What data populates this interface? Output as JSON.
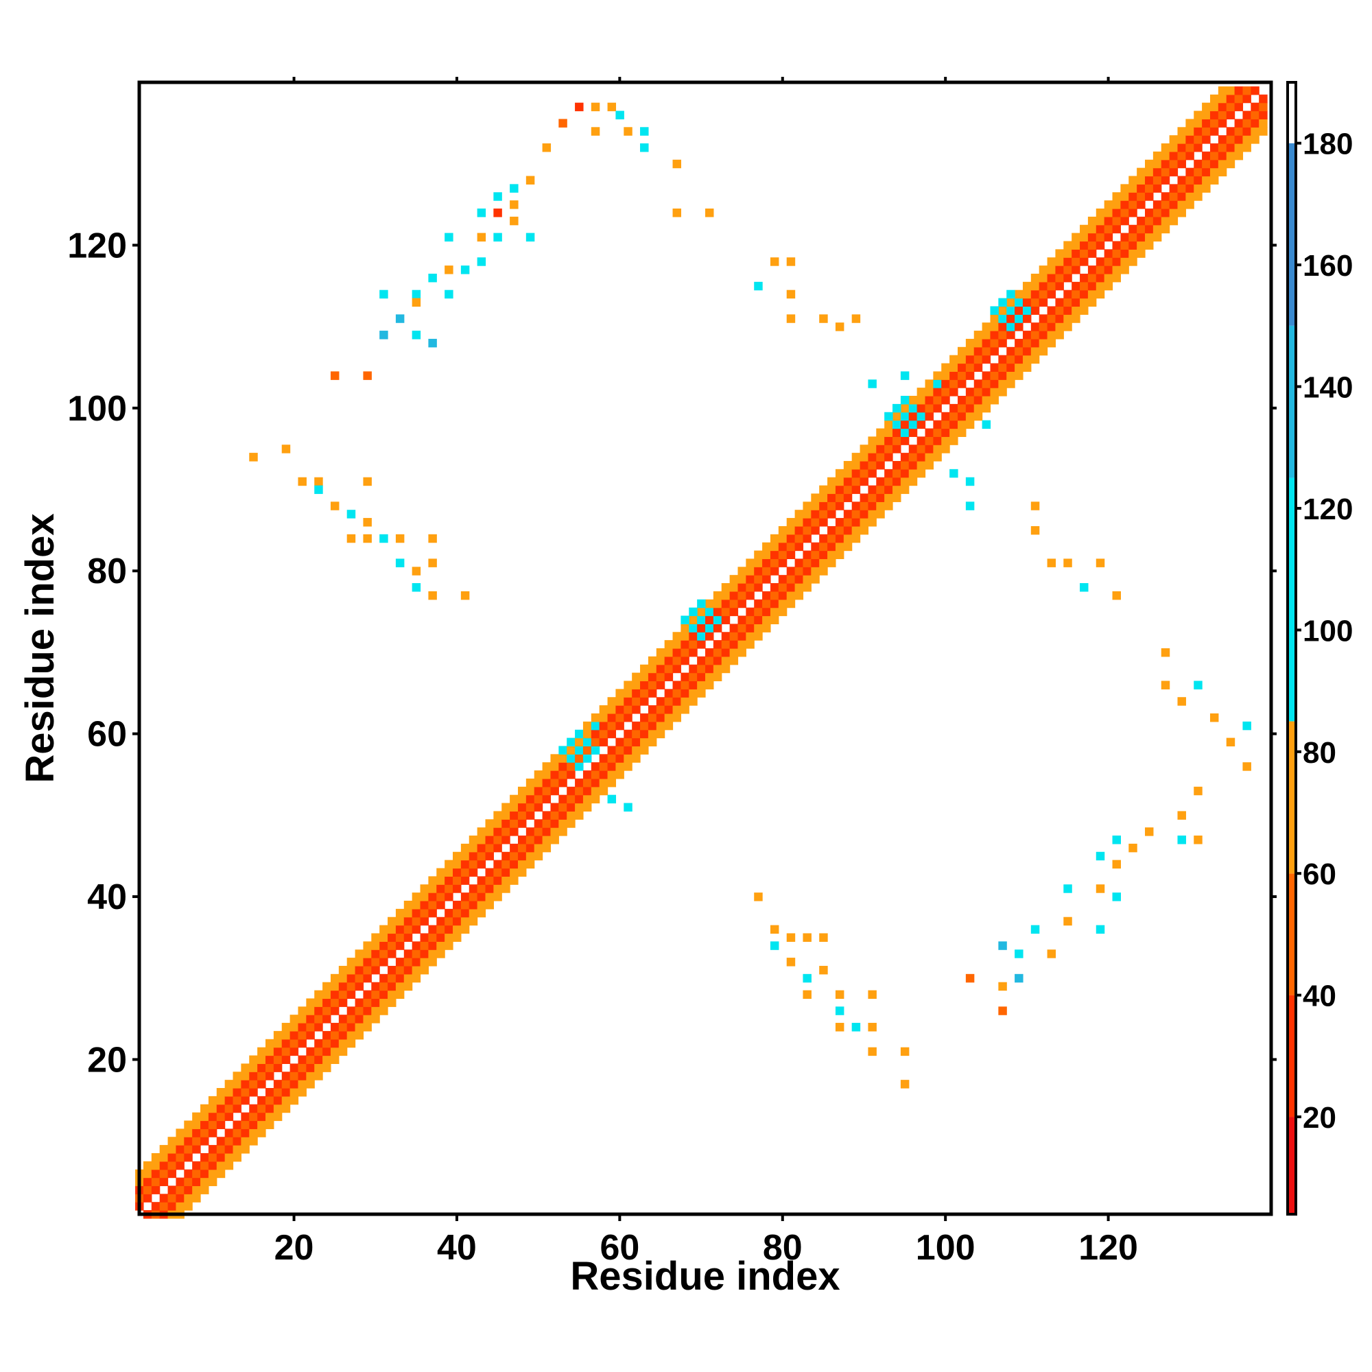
{
  "chart_data": {
    "type": "heatmap",
    "title": "",
    "xlabel": "Residue index",
    "ylabel": "Residue index",
    "xlim": [
      1,
      140
    ],
    "ylim": [
      1,
      140
    ],
    "x_ticks": [
      20,
      40,
      60,
      80,
      100,
      120
    ],
    "y_ticks": [
      20,
      40,
      60,
      80,
      100,
      120
    ],
    "colorbar": {
      "ticks": [
        20,
        40,
        60,
        80,
        100,
        120,
        140,
        160,
        180
      ],
      "range": [
        4,
        190
      ],
      "bands": [
        {
          "from": 4,
          "to": 20,
          "color": "#ee1111"
        },
        {
          "from": 20,
          "to": 40,
          "color": "#ff3300"
        },
        {
          "from": 40,
          "to": 60,
          "color": "#ff6600"
        },
        {
          "from": 60,
          "to": 85,
          "color": "#ffa010"
        },
        {
          "from": 85,
          "to": 125,
          "color": "#00e5f0"
        },
        {
          "from": 125,
          "to": 150,
          "color": "#22b8e0"
        },
        {
          "from": 150,
          "to": 180,
          "color": "#3a8ad0"
        },
        {
          "from": 180,
          "to": 190,
          "color": "#ffffff"
        }
      ]
    },
    "diagonal_band": {
      "start": 1,
      "end": 139,
      "halfwidth": 5
    },
    "diagonal_features": [
      {
        "i": 55,
        "j": 58,
        "r": 3,
        "v": 120
      },
      {
        "i": 70,
        "j": 74,
        "r": 3,
        "v": 115
      },
      {
        "i": 95,
        "j": 99,
        "r": 3,
        "v": 120
      },
      {
        "i": 108,
        "j": 112,
        "r": 3,
        "v": 120
      }
    ],
    "contacts": [
      [
        55,
        137,
        30
      ],
      [
        57,
        137,
        70
      ],
      [
        59,
        137,
        70
      ],
      [
        60,
        136,
        110
      ],
      [
        53,
        135,
        40
      ],
      [
        57,
        134,
        80
      ],
      [
        61,
        134,
        70
      ],
      [
        63,
        134,
        110
      ],
      [
        51,
        132,
        60
      ],
      [
        63,
        132,
        100
      ],
      [
        67,
        130,
        70
      ],
      [
        49,
        128,
        60
      ],
      [
        47,
        127,
        110
      ],
      [
        45,
        126,
        110
      ],
      [
        47,
        125,
        70
      ],
      [
        43,
        124,
        110
      ],
      [
        45,
        124,
        30
      ],
      [
        47,
        123,
        70
      ],
      [
        67,
        124,
        70
      ],
      [
        71,
        124,
        60
      ],
      [
        39,
        121,
        110
      ],
      [
        43,
        121,
        80
      ],
      [
        45,
        121,
        90
      ],
      [
        49,
        121,
        110
      ],
      [
        39,
        117,
        70
      ],
      [
        41,
        117,
        110
      ],
      [
        37,
        116,
        110
      ],
      [
        43,
        118,
        90
      ],
      [
        31,
        114,
        110
      ],
      [
        35,
        114,
        100
      ],
      [
        33,
        111,
        130
      ],
      [
        31,
        109,
        130
      ],
      [
        35,
        109,
        90
      ],
      [
        37,
        108,
        140
      ],
      [
        25,
        104,
        40
      ],
      [
        29,
        104,
        40
      ],
      [
        35,
        113,
        70
      ],
      [
        39,
        114,
        110
      ],
      [
        79,
        118,
        70
      ],
      [
        81,
        118,
        60
      ],
      [
        77,
        115,
        110
      ],
      [
        81,
        114,
        70
      ],
      [
        81,
        111,
        60
      ],
      [
        85,
        111,
        70
      ],
      [
        89,
        111,
        70
      ],
      [
        87,
        110,
        60
      ],
      [
        91,
        103,
        100
      ],
      [
        95,
        104,
        110
      ],
      [
        99,
        103,
        110
      ],
      [
        105,
        98,
        110
      ],
      [
        101,
        92,
        110
      ],
      [
        103,
        91,
        120
      ],
      [
        103,
        88,
        110
      ],
      [
        15,
        94,
        70
      ],
      [
        19,
        95,
        70
      ],
      [
        21,
        91,
        70
      ],
      [
        23,
        91,
        60
      ],
      [
        23,
        90,
        110
      ],
      [
        29,
        91,
        60
      ],
      [
        25,
        88,
        70
      ],
      [
        27,
        87,
        110
      ],
      [
        29,
        86,
        70
      ],
      [
        27,
        84,
        70
      ],
      [
        29,
        84,
        70
      ],
      [
        31,
        84,
        110
      ],
      [
        33,
        84,
        70
      ],
      [
        37,
        84,
        60
      ],
      [
        33,
        81,
        110
      ],
      [
        35,
        80,
        70
      ],
      [
        37,
        81,
        70
      ],
      [
        35,
        78,
        110
      ],
      [
        37,
        77,
        60
      ],
      [
        41,
        77,
        70
      ],
      [
        111,
        88,
        70
      ],
      [
        111,
        85,
        70
      ],
      [
        113,
        81,
        60
      ],
      [
        115,
        81,
        70
      ],
      [
        119,
        81,
        70
      ],
      [
        117,
        78,
        110
      ],
      [
        121,
        77,
        70
      ],
      [
        127,
        70,
        60
      ],
      [
        127,
        66,
        60
      ],
      [
        131,
        66,
        110
      ],
      [
        129,
        64,
        70
      ],
      [
        133,
        62,
        70
      ],
      [
        137,
        61,
        110
      ],
      [
        135,
        59,
        70
      ],
      [
        137,
        56,
        70
      ],
      [
        131,
        53,
        60
      ],
      [
        129,
        50,
        60
      ],
      [
        125,
        48,
        60
      ],
      [
        129,
        47,
        110
      ],
      [
        131,
        47,
        60
      ],
      [
        121,
        47,
        110
      ],
      [
        123,
        46,
        60
      ],
      [
        119,
        45,
        110
      ],
      [
        121,
        44,
        70
      ],
      [
        115,
        41,
        110
      ],
      [
        119,
        41,
        70
      ],
      [
        115,
        37,
        70
      ],
      [
        121,
        40,
        110
      ],
      [
        111,
        36,
        110
      ],
      [
        119,
        36,
        110
      ],
      [
        109,
        33,
        110
      ],
      [
        107,
        34,
        130
      ],
      [
        113,
        33,
        70
      ],
      [
        103,
        30,
        40
      ],
      [
        107,
        29,
        60
      ],
      [
        107,
        26,
        40
      ],
      [
        109,
        30,
        130
      ],
      [
        77,
        40,
        70
      ],
      [
        79,
        36,
        70
      ],
      [
        81,
        35,
        70
      ],
      [
        83,
        35,
        70
      ],
      [
        85,
        35,
        60
      ],
      [
        79,
        34,
        110
      ],
      [
        81,
        32,
        70
      ],
      [
        85,
        31,
        70
      ],
      [
        83,
        30,
        110
      ],
      [
        83,
        28,
        70
      ],
      [
        87,
        28,
        60
      ],
      [
        91,
        28,
        60
      ],
      [
        87,
        26,
        110
      ],
      [
        87,
        24,
        70
      ],
      [
        89,
        24,
        110
      ],
      [
        91,
        24,
        70
      ],
      [
        91,
        21,
        60
      ],
      [
        95,
        21,
        70
      ],
      [
        95,
        17,
        70
      ],
      [
        59,
        52,
        110
      ],
      [
        61,
        51,
        110
      ],
      [
        57,
        61,
        110
      ],
      [
        55,
        60,
        120
      ]
    ]
  }
}
